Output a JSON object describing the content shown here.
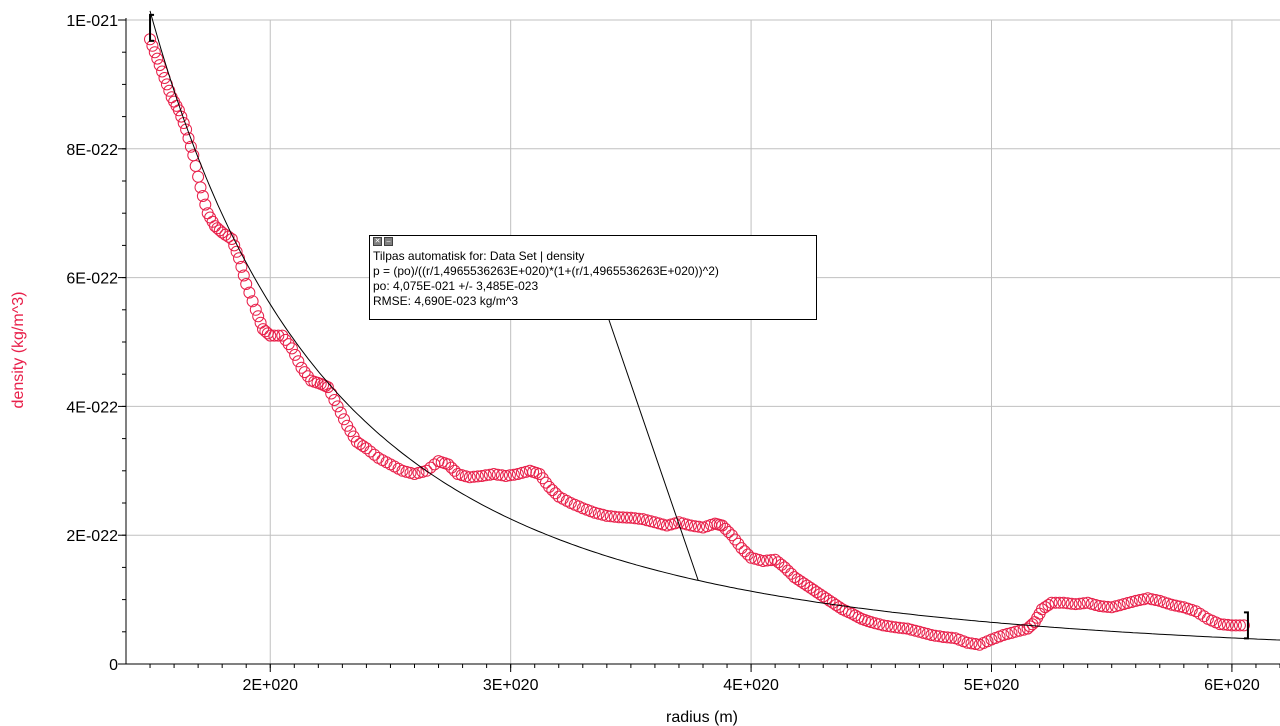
{
  "chart_data": {
    "type": "scatter",
    "xlabel": "radius (m)",
    "ylabel": "density (kg/m^3)",
    "xlim": [
      1.4e+20,
      6.2e+20
    ],
    "ylim": [
      0,
      1e-21
    ],
    "x_ticks": [
      2e+20,
      3e+20,
      4e+20,
      5e+20,
      6e+20
    ],
    "x_tick_labels": [
      "2E+020",
      "3E+020",
      "4E+020",
      "5E+020",
      "6E+020"
    ],
    "y_ticks": [
      0,
      2e-22,
      4e-22,
      6e-22,
      8e-22,
      1e-21
    ],
    "y_tick_labels": [
      "0",
      "2E-022",
      "4E-022",
      "6E-022",
      "8E-022",
      "1E-021"
    ],
    "grid": true,
    "colors": {
      "data": "#e8204a",
      "fit": "#000000",
      "ylabel": "#e8204a"
    },
    "series": [
      {
        "name": "density",
        "marker": "circle",
        "points": [
          [
            1.5e+20,
            9.7e-22
          ],
          [
            1.53e+20,
            9.4e-22
          ],
          [
            1.56e+20,
            9.1e-22
          ],
          [
            1.59e+20,
            8.8e-22
          ],
          [
            1.62e+20,
            8.6e-22
          ],
          [
            1.65e+20,
            8.3e-22
          ],
          [
            1.68e+20,
            7.9e-22
          ],
          [
            1.71e+20,
            7.4e-22
          ],
          [
            1.74e+20,
            7e-22
          ],
          [
            1.77e+20,
            6.8e-22
          ],
          [
            1.8e+20,
            6.7e-22
          ],
          [
            1.84e+20,
            6.6e-22
          ],
          [
            1.87e+20,
            6.3e-22
          ],
          [
            1.9e+20,
            5.9e-22
          ],
          [
            1.94e+20,
            5.5e-22
          ],
          [
            1.97e+20,
            5.2e-22
          ],
          [
            2e+20,
            5.1e-22
          ],
          [
            2.05e+20,
            5.1e-22
          ],
          [
            2.09e+20,
            4.9e-22
          ],
          [
            2.13e+20,
            4.6e-22
          ],
          [
            2.17e+20,
            4.4e-22
          ],
          [
            2.21e+20,
            4.35e-22
          ],
          [
            2.24e+20,
            4.3e-22
          ],
          [
            2.28e+20,
            4e-22
          ],
          [
            2.32e+20,
            3.7e-22
          ],
          [
            2.36e+20,
            3.45e-22
          ],
          [
            2.4e+20,
            3.35e-22
          ],
          [
            2.45e+20,
            3.2e-22
          ],
          [
            2.5e+20,
            3.1e-22
          ],
          [
            2.55e+20,
            3e-22
          ],
          [
            2.6e+20,
            2.95e-22
          ],
          [
            2.65e+20,
            3e-22
          ],
          [
            2.7e+20,
            3.15e-22
          ],
          [
            2.74e+20,
            3.1e-22
          ],
          [
            2.78e+20,
            2.95e-22
          ],
          [
            2.83e+20,
            2.9e-22
          ],
          [
            2.88e+20,
            2.92e-22
          ],
          [
            2.93e+20,
            2.95e-22
          ],
          [
            2.98e+20,
            2.92e-22
          ],
          [
            3.03e+20,
            2.95e-22
          ],
          [
            3.08e+20,
            3e-22
          ],
          [
            3.12e+20,
            2.95e-22
          ],
          [
            3.16e+20,
            2.75e-22
          ],
          [
            3.2e+20,
            2.6e-22
          ],
          [
            3.25e+20,
            2.5e-22
          ],
          [
            3.3e+20,
            2.42e-22
          ],
          [
            3.35e+20,
            2.35e-22
          ],
          [
            3.4e+20,
            2.3e-22
          ],
          [
            3.45e+20,
            2.28e-22
          ],
          [
            3.5e+20,
            2.27e-22
          ],
          [
            3.55e+20,
            2.25e-22
          ],
          [
            3.6e+20,
            2.2e-22
          ],
          [
            3.65e+20,
            2.15e-22
          ],
          [
            3.7e+20,
            2.2e-22
          ],
          [
            3.75e+20,
            2.15e-22
          ],
          [
            3.8e+20,
            2.12e-22
          ],
          [
            3.85e+20,
            2.18e-22
          ],
          [
            3.88e+20,
            2.15e-22
          ],
          [
            3.92e+20,
            2e-22
          ],
          [
            3.96e+20,
            1.8e-22
          ],
          [
            4e+20,
            1.65e-22
          ],
          [
            4.05e+20,
            1.6e-22
          ],
          [
            4.1e+20,
            1.62e-22
          ],
          [
            4.14e+20,
            1.5e-22
          ],
          [
            4.18e+20,
            1.35e-22
          ],
          [
            4.22e+20,
            1.25e-22
          ],
          [
            4.26e+20,
            1.15e-22
          ],
          [
            4.3e+20,
            1.05e-22
          ],
          [
            4.34e+20,
            9.5e-23
          ],
          [
            4.38e+20,
            8.5e-23
          ],
          [
            4.42e+20,
            7.8e-23
          ],
          [
            4.46e+20,
            7e-23
          ],
          [
            4.5e+20,
            6.5e-23
          ],
          [
            4.55e+20,
            6e-23
          ],
          [
            4.6e+20,
            5.7e-23
          ],
          [
            4.65e+20,
            5.5e-23
          ],
          [
            4.7e+20,
            5e-23
          ],
          [
            4.75e+20,
            4.5e-23
          ],
          [
            4.8e+20,
            4.2e-23
          ],
          [
            4.85e+20,
            4e-23
          ],
          [
            4.9e+20,
            3.3e-23
          ],
          [
            4.95e+20,
            3e-23
          ],
          [
            5e+20,
            3.8e-23
          ],
          [
            5.05e+20,
            4.5e-23
          ],
          [
            5.1e+20,
            5e-23
          ],
          [
            5.15e+20,
            5.5e-23
          ],
          [
            5.18e+20,
            6.5e-23
          ],
          [
            5.21e+20,
            8.5e-23
          ],
          [
            5.25e+20,
            9.5e-23
          ],
          [
            5.3e+20,
            9.5e-23
          ],
          [
            5.35e+20,
            9.3e-23
          ],
          [
            5.4e+20,
            9.5e-23
          ],
          [
            5.45e+20,
            9e-23
          ],
          [
            5.5e+20,
            8.8e-23
          ],
          [
            5.55e+20,
            9.3e-23
          ],
          [
            5.6e+20,
            9.8e-23
          ],
          [
            5.65e+20,
            1.02e-22
          ],
          [
            5.7e+20,
            9.8e-23
          ],
          [
            5.75e+20,
            9.2e-23
          ],
          [
            5.8e+20,
            8.8e-23
          ],
          [
            5.85e+20,
            8.2e-23
          ],
          [
            5.9e+20,
            7e-23
          ],
          [
            5.95e+20,
            6.2e-23
          ],
          [
            6e+20,
            6e-23
          ],
          [
            6.05e+20,
            6e-23
          ]
        ]
      }
    ],
    "fit": {
      "box_lines": [
        "Tilpas automatisk for: Data Set | density",
        "p = (po)/((r/1,4965536263E+020)*(1+(r/1,4965536263E+020))^2)",
        "po: 4,075E-021 +/- 3,485E-023",
        "RMSE: 4,690E-023 kg/m^3"
      ],
      "po": 4.075e-21,
      "rs": 1.4965536263e+20,
      "x_range": [
        1.5e+20,
        6.2e+20
      ],
      "callout_x": 3.78e+20
    },
    "fit_range_brackets": [
      1.5e+20,
      6.05e+20
    ]
  }
}
